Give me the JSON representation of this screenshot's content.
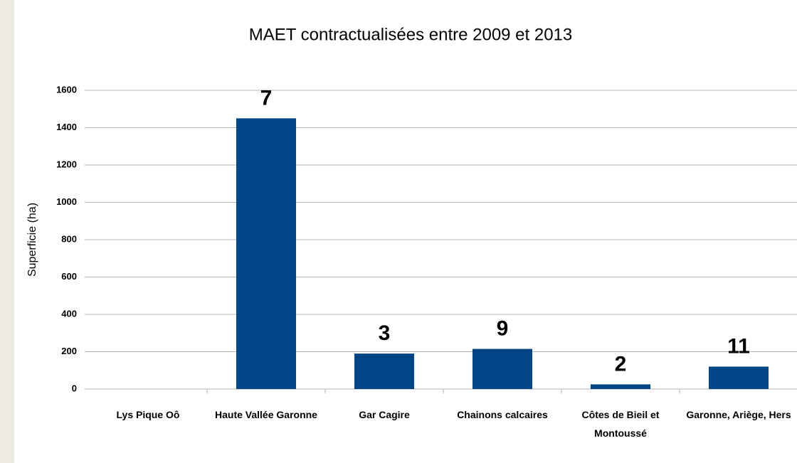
{
  "chart_data": {
    "type": "bar",
    "title": "MAET contractualisées entre 2009 et 2013",
    "y_label": "Superficie (ha)",
    "categories": [
      "Lys Pique Oô",
      "Haute Vallée Garonne",
      "Gar Cagire",
      "Chainons calcaires",
      "Côtes de Bieil et Montoussé",
      "Garonne, Ariège, Hers"
    ],
    "values": [
      0,
      1450,
      190,
      215,
      25,
      120
    ],
    "annotations": [
      null,
      "7",
      "3",
      "9",
      "2",
      "11"
    ],
    "color": "#004586",
    "ylim": [
      0,
      1600
    ],
    "yticks": [
      0,
      200,
      400,
      600,
      800,
      1000,
      1200,
      1400,
      1600
    ],
    "grid": true
  }
}
